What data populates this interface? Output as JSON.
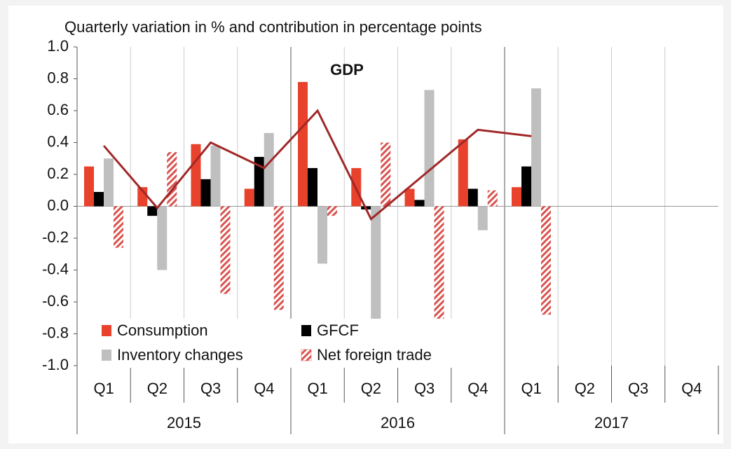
{
  "chart_data": {
    "type": "bar",
    "title": "Quarterly variation in % and contribution in percentage points",
    "categories": [
      "Q1",
      "Q2",
      "Q3",
      "Q4",
      "Q1",
      "Q2",
      "Q3",
      "Q4",
      "Q1",
      "Q2",
      "Q3",
      "Q4"
    ],
    "years": [
      "2015",
      "2016",
      "2017"
    ],
    "series": [
      {
        "name": "Consumption",
        "color": "#e8412c",
        "values": [
          0.25,
          0.12,
          0.39,
          0.11,
          0.78,
          0.24,
          0.11,
          0.42,
          0.12,
          null,
          null,
          null
        ]
      },
      {
        "name": "GFCF",
        "color": "#000000",
        "values": [
          0.09,
          -0.06,
          0.17,
          0.31,
          0.24,
          -0.02,
          0.04,
          0.11,
          0.25,
          null,
          null,
          null
        ]
      },
      {
        "name": "Inventory changes",
        "color": "#bfbfbf",
        "values": [
          0.3,
          -0.4,
          0.38,
          0.46,
          -0.36,
          -0.72,
          0.73,
          -0.15,
          0.74,
          null,
          null,
          null
        ]
      },
      {
        "name": "Net foreign trade",
        "color": "#d9534f",
        "pattern": "hatch",
        "values": [
          -0.26,
          0.34,
          -0.55,
          -0.65,
          -0.06,
          0.4,
          -0.72,
          0.1,
          -0.68,
          null,
          null,
          null
        ]
      }
    ],
    "line": {
      "name": "GDP",
      "color": "#a02828",
      "values": [
        0.38,
        -0.01,
        0.4,
        0.24,
        0.6,
        -0.08,
        0.2,
        0.48,
        0.44,
        null,
        null,
        null
      ]
    },
    "ylim": [
      -1.0,
      1.0
    ],
    "yticks": [
      {
        "value": -1.0,
        "label": "-1.0"
      },
      -0.8,
      -0.6,
      -0.4,
      -0.2,
      {
        "value": 0,
        "label": "0.0"
      },
      0.2,
      0.4,
      0.6,
      0.8,
      {
        "value": 1.0,
        "label": "1.0"
      }
    ]
  }
}
